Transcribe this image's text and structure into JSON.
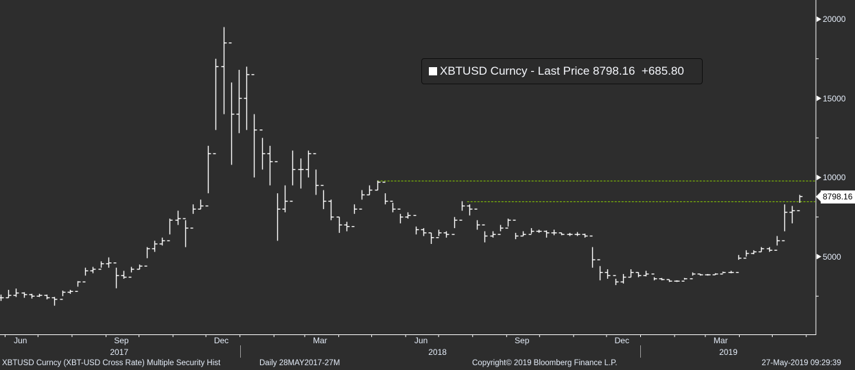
{
  "legend": {
    "series": "XBTUSD Curncy",
    "separator": "-",
    "field": "Last Price",
    "last": "8798.16",
    "change": "+685.80",
    "swatch_color": "#ffffff"
  },
  "price_tag": "8798.16",
  "footer": {
    "left": "XBTUSD Curncy (XBT-USD Cross Rate) Multiple Security Hist",
    "period": "Daily 28MAY2017-27M",
    "copyright": "Copyright© 2019 Bloomberg Finance L.P.",
    "timestamp": "27-May-2019 09:29:39"
  },
  "colors": {
    "background": "#2d2d2d",
    "bars": "#ffffff",
    "trendline": "#8fd400"
  },
  "chart_data": {
    "type": "ohlc-bar",
    "x_range": [
      "2017-05-28",
      "2019-05-27"
    ],
    "ylim": [
      0,
      20800
    ],
    "y_axis_side": "right",
    "y_ticks": [
      "5000",
      "10000",
      "15000",
      "20000"
    ],
    "x_ticks": [
      {
        "label": "Jun",
        "date": "2017-06-15"
      },
      {
        "label": "Sep",
        "date": "2017-09-15"
      },
      {
        "label": "Dec",
        "date": "2017-12-15"
      },
      {
        "label": "Mar",
        "date": "2018-03-15"
      },
      {
        "label": "Jun",
        "date": "2018-06-15"
      },
      {
        "label": "Sep",
        "date": "2018-09-15"
      },
      {
        "label": "Dec",
        "date": "2018-12-15"
      },
      {
        "label": "Mar",
        "date": "2019-03-15"
      }
    ],
    "year_labels": [
      {
        "label": "2017",
        "date": "2017-09-13"
      },
      {
        "label": "2018",
        "date": "2018-06-30"
      },
      {
        "label": "2019",
        "date": "2019-03-22"
      }
    ],
    "year_separators": [
      "2018-01-01",
      "2019-01-01"
    ],
    "grid": false,
    "reference_lines": [
      {
        "value": 9780,
        "from": "2018-05-06"
      },
      {
        "value": 8470,
        "from": "2018-07-27"
      }
    ],
    "series": [
      {
        "name": "XBTUSD Curncy",
        "bars": [
          [
            "2017-05-28",
            2600,
            2200,
            2400
          ],
          [
            "2017-06-04",
            2900,
            2400,
            2550
          ],
          [
            "2017-06-11",
            2980,
            2450,
            2700
          ],
          [
            "2017-06-18",
            2750,
            2400,
            2600
          ],
          [
            "2017-06-25",
            2650,
            2350,
            2500
          ],
          [
            "2017-07-02",
            2650,
            2450,
            2550
          ],
          [
            "2017-07-09",
            2600,
            2300,
            2400
          ],
          [
            "2017-07-16",
            2450,
            1900,
            2300
          ],
          [
            "2017-07-23",
            2850,
            2500,
            2750
          ],
          [
            "2017-07-30",
            2900,
            2650,
            2800
          ],
          [
            "2017-08-06",
            3450,
            3100,
            3400
          ],
          [
            "2017-08-13",
            4300,
            3800,
            4100
          ],
          [
            "2017-08-20",
            4350,
            3950,
            4200
          ],
          [
            "2017-08-27",
            4700,
            4300,
            4550
          ],
          [
            "2017-09-03",
            4950,
            4300,
            4600
          ],
          [
            "2017-09-10",
            4300,
            3000,
            3800
          ],
          [
            "2017-09-17",
            4100,
            3600,
            3700
          ],
          [
            "2017-09-24",
            4350,
            4000,
            4200
          ],
          [
            "2017-10-01",
            4500,
            4200,
            4400
          ],
          [
            "2017-10-08",
            5600,
            4900,
            5500
          ],
          [
            "2017-10-15",
            6000,
            5300,
            5800
          ],
          [
            "2017-10-22",
            6200,
            5700,
            6000
          ],
          [
            "2017-10-29",
            7400,
            6400,
            7300
          ],
          [
            "2017-11-05",
            7900,
            7000,
            7400
          ],
          [
            "2017-11-12",
            7300,
            5600,
            6800
          ],
          [
            "2017-11-19",
            8300,
            7700,
            8000
          ],
          [
            "2017-11-26",
            8600,
            8000,
            8200
          ],
          [
            "2017-12-03",
            12000,
            9000,
            11500
          ],
          [
            "2017-12-10",
            17500,
            13000,
            17000
          ],
          [
            "2017-12-17",
            19500,
            14000,
            18500
          ],
          [
            "2017-12-24",
            16000,
            10800,
            14000
          ],
          [
            "2017-12-31",
            16800,
            12800,
            15000
          ],
          [
            "2018-01-07",
            17000,
            13000,
            16500
          ],
          [
            "2018-01-14",
            14000,
            10000,
            13000
          ],
          [
            "2018-01-21",
            12500,
            10500,
            11500
          ],
          [
            "2018-01-28",
            12000,
            9500,
            11000
          ],
          [
            "2018-02-04",
            9000,
            6000,
            8000
          ],
          [
            "2018-02-11",
            9500,
            7800,
            8500
          ],
          [
            "2018-02-18",
            11700,
            9500,
            10500
          ],
          [
            "2018-02-25",
            11200,
            9300,
            10500
          ],
          [
            "2018-03-04",
            11700,
            10000,
            11500
          ],
          [
            "2018-03-11",
            10500,
            8900,
            9500
          ],
          [
            "2018-03-18",
            9200,
            8000,
            8500
          ],
          [
            "2018-03-25",
            8600,
            7300,
            7500
          ],
          [
            "2018-04-01",
            7500,
            6500,
            7000
          ],
          [
            "2018-04-08",
            7200,
            6600,
            6900
          ],
          [
            "2018-04-15",
            8300,
            7700,
            8000
          ],
          [
            "2018-04-22",
            9200,
            8600,
            8900
          ],
          [
            "2018-04-29",
            9500,
            8900,
            9200
          ],
          [
            "2018-05-06",
            9800,
            9200,
            9700
          ],
          [
            "2018-05-13",
            9000,
            8300,
            8500
          ],
          [
            "2018-05-20",
            8400,
            7800,
            8000
          ],
          [
            "2018-05-27",
            7700,
            7100,
            7500
          ],
          [
            "2018-06-03",
            7800,
            7400,
            7600
          ],
          [
            "2018-06-10",
            6900,
            6400,
            6700
          ],
          [
            "2018-06-17",
            6800,
            6300,
            6500
          ],
          [
            "2018-06-24",
            6500,
            5800,
            6200
          ],
          [
            "2018-07-01",
            6700,
            6300,
            6500
          ],
          [
            "2018-07-08",
            6600,
            6200,
            6400
          ],
          [
            "2018-07-15",
            7500,
            6800,
            7300
          ],
          [
            "2018-07-22",
            8500,
            7900,
            8200
          ],
          [
            "2018-07-29",
            8300,
            7600,
            8000
          ],
          [
            "2018-08-05",
            7300,
            6700,
            7000
          ],
          [
            "2018-08-12",
            6600,
            5900,
            6300
          ],
          [
            "2018-08-19",
            6600,
            6200,
            6400
          ],
          [
            "2018-08-26",
            7000,
            6600,
            6800
          ],
          [
            "2018-09-02",
            7400,
            6900,
            7300
          ],
          [
            "2018-09-09",
            6500,
            6100,
            6300
          ],
          [
            "2018-09-16",
            6600,
            6300,
            6400
          ],
          [
            "2018-09-23",
            6800,
            6450,
            6600
          ],
          [
            "2018-09-30",
            6700,
            6500,
            6600
          ],
          [
            "2018-10-07",
            6650,
            6200,
            6500
          ],
          [
            "2018-10-14",
            6700,
            6350,
            6500
          ],
          [
            "2018-10-21",
            6500,
            6350,
            6400
          ],
          [
            "2018-10-28",
            6500,
            6300,
            6400
          ],
          [
            "2018-11-04",
            6550,
            6300,
            6400
          ],
          [
            "2018-11-11",
            6450,
            6200,
            6300
          ],
          [
            "2018-11-18",
            5600,
            4300,
            4800
          ],
          [
            "2018-11-25",
            4400,
            3500,
            4000
          ],
          [
            "2018-12-02",
            4200,
            3600,
            3800
          ],
          [
            "2018-12-09",
            3600,
            3200,
            3400
          ],
          [
            "2018-12-16",
            3900,
            3300,
            3700
          ],
          [
            "2018-12-23",
            4200,
            3700,
            4000
          ],
          [
            "2018-12-30",
            4000,
            3700,
            3800
          ],
          [
            "2019-01-06",
            4100,
            3750,
            3900
          ],
          [
            "2019-01-13",
            3700,
            3500,
            3600
          ],
          [
            "2019-01-20",
            3650,
            3500,
            3550
          ],
          [
            "2019-01-27",
            3550,
            3400,
            3450
          ],
          [
            "2019-02-03",
            3500,
            3400,
            3450
          ],
          [
            "2019-02-10",
            3650,
            3550,
            3600
          ],
          [
            "2019-02-17",
            4000,
            3800,
            3900
          ],
          [
            "2019-02-24",
            3900,
            3800,
            3850
          ],
          [
            "2019-03-03",
            3900,
            3800,
            3850
          ],
          [
            "2019-03-10",
            3950,
            3850,
            3900
          ],
          [
            "2019-03-17",
            4050,
            3950,
            4000
          ],
          [
            "2019-03-24",
            4100,
            3950,
            4000
          ],
          [
            "2019-03-31",
            5100,
            4800,
            4900
          ],
          [
            "2019-04-07",
            5400,
            5000,
            5200
          ],
          [
            "2019-04-14",
            5400,
            5150,
            5300
          ],
          [
            "2019-04-21",
            5600,
            5300,
            5500
          ],
          [
            "2019-04-28",
            5600,
            5300,
            5400
          ],
          [
            "2019-05-05",
            6300,
            5700,
            6000
          ],
          [
            "2019-05-12",
            8300,
            6600,
            7800
          ],
          [
            "2019-05-19",
            8200,
            7100,
            7900
          ],
          [
            "2019-05-26",
            8900,
            8400,
            8798.16
          ]
        ]
      }
    ]
  }
}
